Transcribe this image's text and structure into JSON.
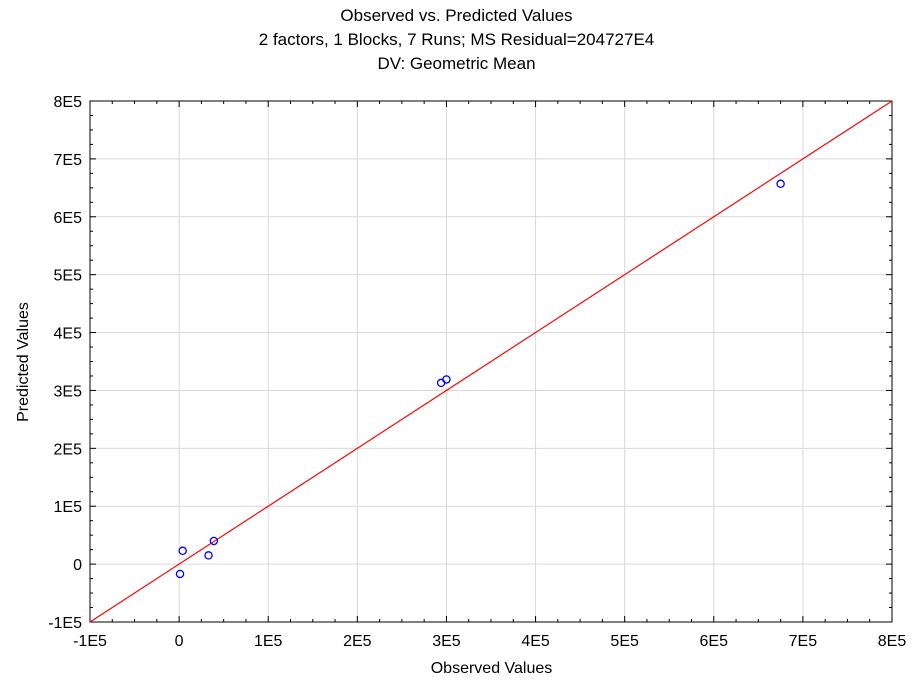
{
  "chart_data": {
    "type": "scatter",
    "title": "Observed vs. Predicted Values",
    "subtitle_1": "2 factors, 1 Blocks, 7 Runs; MS Residual=204727E4",
    "subtitle_2": "DV: Geometric Mean",
    "xlabel": "Observed Values",
    "ylabel": "Predicted Values",
    "xlim": [
      -100000,
      800000
    ],
    "ylim": [
      -100000,
      800000
    ],
    "x_ticks": [
      -100000,
      0,
      100000,
      200000,
      300000,
      400000,
      500000,
      600000,
      700000,
      800000
    ],
    "x_tick_labels": [
      "-1E5",
      "0",
      "1E5",
      "2E5",
      "3E5",
      "4E5",
      "5E5",
      "6E5",
      "7E5",
      "8E5"
    ],
    "y_ticks": [
      -100000,
      0,
      100000,
      200000,
      300000,
      400000,
      500000,
      600000,
      700000,
      800000
    ],
    "y_tick_labels": [
      "-1E5",
      "0",
      "1E5",
      "2E5",
      "3E5",
      "4E5",
      "5E5",
      "6E5",
      "7E5",
      "8E5"
    ],
    "grid": true,
    "series": [
      {
        "type": "scatter",
        "color": "#0000ff",
        "marker": "circle-open",
        "points": [
          {
            "x": 1000,
            "y": -17000
          },
          {
            "x": 4000,
            "y": 23000
          },
          {
            "x": 33000,
            "y": 15000
          },
          {
            "x": 39000,
            "y": 40000
          },
          {
            "x": 294000,
            "y": 313000
          },
          {
            "x": 300000,
            "y": 319000
          },
          {
            "x": 675000,
            "y": 657000
          }
        ]
      },
      {
        "type": "line",
        "color": "#ff0000",
        "points": [
          {
            "x": -100000,
            "y": -100000
          },
          {
            "x": 800000,
            "y": 800000
          }
        ]
      }
    ]
  }
}
